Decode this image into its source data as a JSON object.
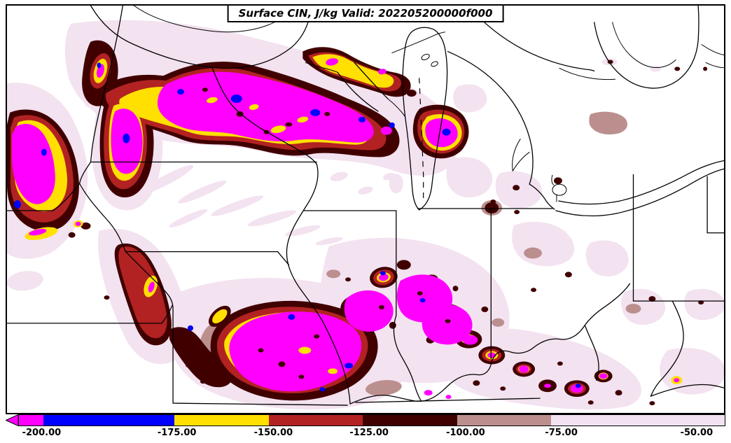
{
  "title": {
    "text": "Surface CIN, J/kg Valid: 202205200000f000"
  },
  "colorbar": {
    "ticks": [
      "-200.00",
      "-175.00",
      "-150.00",
      "-125.00",
      "-100.00",
      "-75.00",
      "-50.00"
    ],
    "segment_colors": [
      "#FF00FF",
      "#0000FF",
      "#FFE000",
      "#B22222",
      "#400000",
      "#BC8F8F",
      "#F3E2F0"
    ],
    "arrow_color": "#FF00FF",
    "levels": [
      {
        "upper": -200,
        "color": "#FF00FF"
      },
      {
        "lower": -200,
        "upper": -175,
        "color": "#0000FF"
      },
      {
        "lower": -175,
        "upper": -150,
        "color": "#FFE000"
      },
      {
        "lower": -150,
        "upper": -125,
        "color": "#B22222"
      },
      {
        "lower": -125,
        "upper": -100,
        "color": "#400000"
      },
      {
        "lower": -100,
        "upper": -75,
        "color": "#BC8F8F"
      },
      {
        "lower": -75,
        "upper": -50,
        "color": "#F3E2F0"
      }
    ]
  },
  "map": {
    "background": "#FFFFFF",
    "line_color": "#000000",
    "fill_colors": {
      "magenta": "#FF00FF",
      "blue": "#0000FF",
      "yellow": "#FFE000",
      "red": "#B22222",
      "dark_maroon": "#400000",
      "mauve": "#BC8F8F",
      "pale_pink": "#F3E2F0"
    }
  }
}
